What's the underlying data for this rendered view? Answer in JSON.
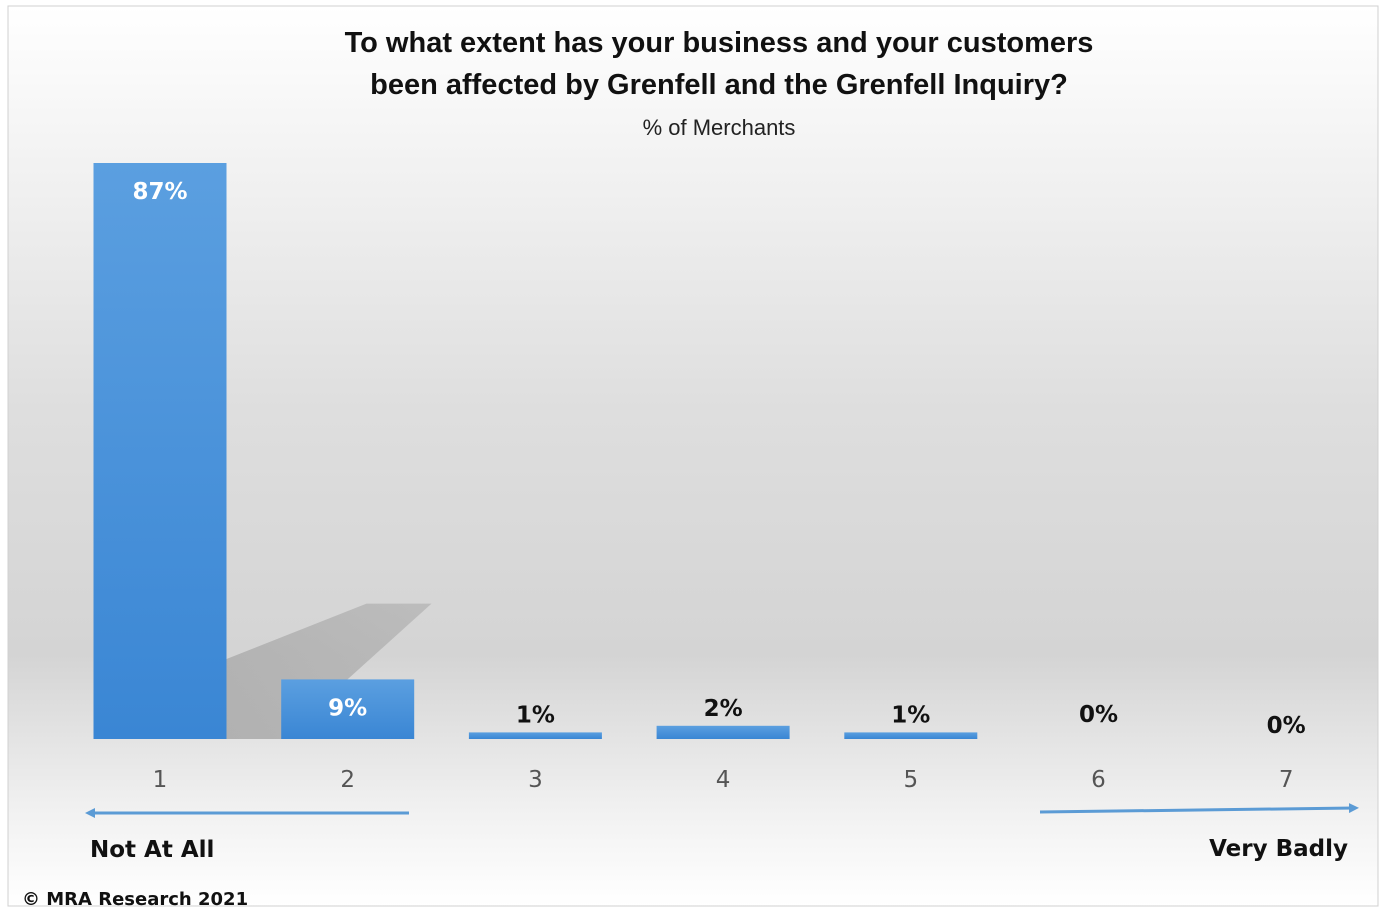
{
  "chart_data": {
    "type": "bar",
    "title_lines": [
      "To what extent has your business and your customers",
      "been affected by Grenfell and the Grenfell Inquiry?"
    ],
    "subtitle": "% of Merchants",
    "categories": [
      "1",
      "2",
      "3",
      "4",
      "5",
      "6",
      "7"
    ],
    "values": [
      87,
      9,
      1,
      2,
      1,
      0,
      0
    ],
    "value_labels": [
      "87%",
      "9%",
      "1%",
      "2%",
      "1%",
      "0%",
      "0%"
    ],
    "ylim": [
      0,
      87
    ],
    "grid": false,
    "legend": "none",
    "bar_color": "#3e8ad6",
    "bar_color_light": "#5b9fe0",
    "scale_left_label": "Not At All",
    "scale_right_label": "Very Badly",
    "arrow_color": "#5b9bd5"
  },
  "footer": {
    "copyright": "© MRA Research 2021"
  }
}
